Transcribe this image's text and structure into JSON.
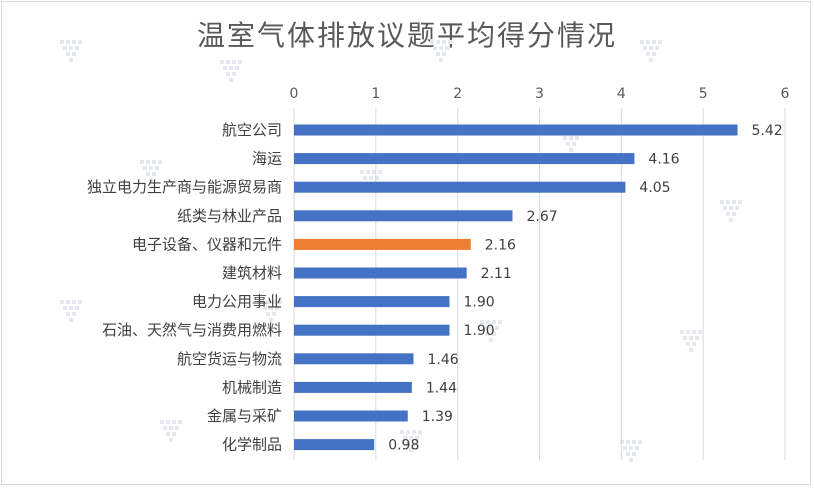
{
  "chart_data": {
    "type": "bar",
    "orientation": "horizontal",
    "title": "温室气体排放议题平均得分情况",
    "xlabel": "",
    "ylabel": "",
    "xlim": [
      0,
      6
    ],
    "ticks": [
      0,
      1,
      2,
      3,
      4,
      5,
      6
    ],
    "tick_position": "top",
    "grid": true,
    "categories": [
      "航空公司",
      "海运",
      "独立电力生产商与能源贸易商",
      "纸类与林业产品",
      "电子设备、仪器和元件",
      "建筑材料",
      "电力公用事业",
      "石油、天然气与消费用燃料",
      "航空货运与物流",
      "机械制造",
      "金属与采矿",
      "化学制品"
    ],
    "values": [
      5.42,
      4.16,
      4.05,
      2.67,
      2.16,
      2.11,
      1.9,
      1.9,
      1.46,
      1.44,
      1.39,
      0.98
    ],
    "value_labels": [
      "5.42",
      "4.16",
      "4.05",
      "2.67",
      "2.16",
      "2.11",
      "1.90",
      "1.90",
      "1.46",
      "1.44",
      "1.39",
      "0.98"
    ],
    "highlight_index": 4,
    "colors": {
      "bar": "#4472c4",
      "highlight": "#ed7d31",
      "grid": "#d9d9d9"
    }
  }
}
